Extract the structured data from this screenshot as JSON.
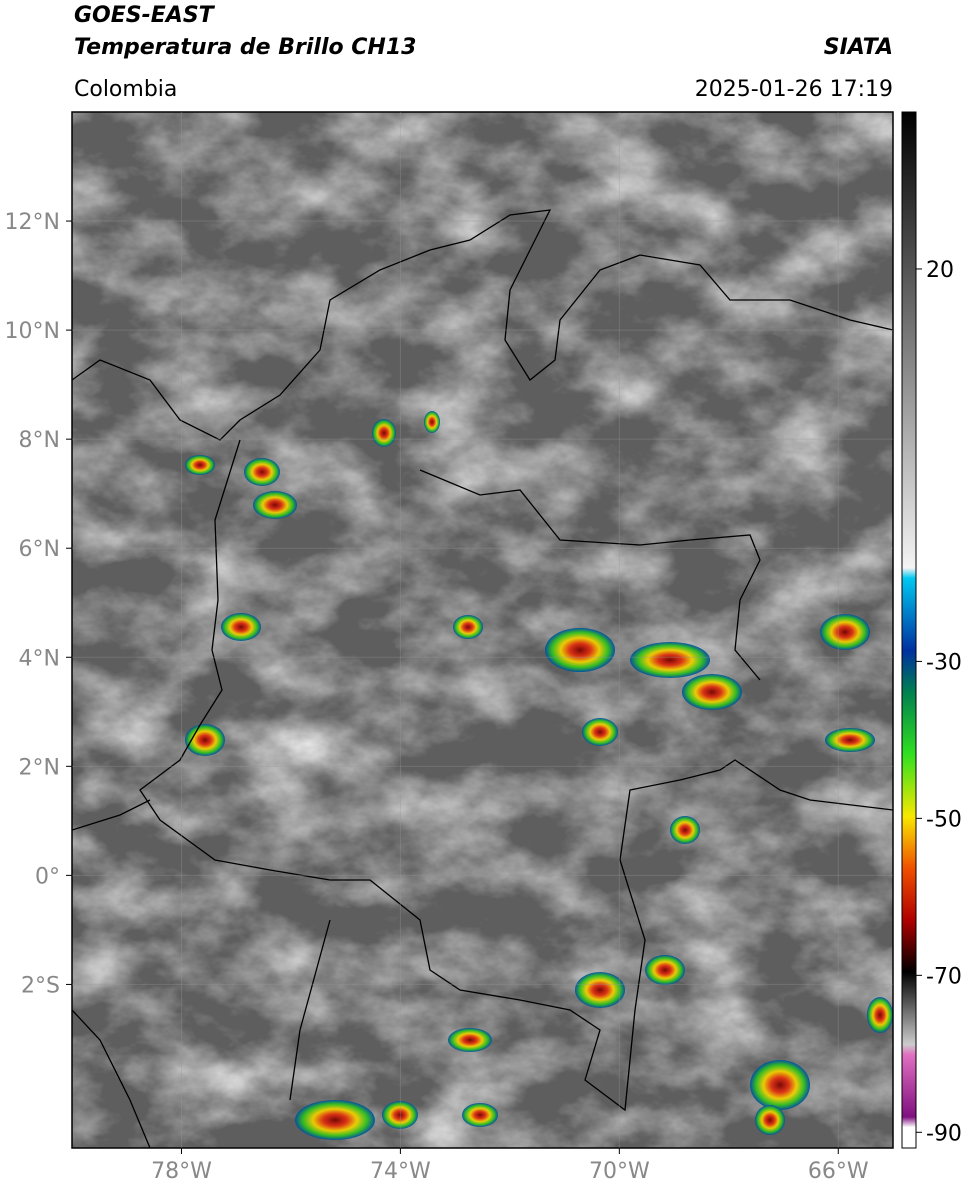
{
  "header": {
    "title": "GOES-EAST",
    "subtitle": "Temperatura de Brillo CH13",
    "source": "SIATA",
    "region": "Colombia",
    "datetime": "2025-01-26 17:19"
  },
  "map": {
    "xlim": [
      -80,
      -65
    ],
    "ylim": [
      -5,
      14
    ],
    "xticks": [
      {
        "value": -78,
        "label": "78°W"
      },
      {
        "value": -74,
        "label": "74°W"
      },
      {
        "value": -70,
        "label": "70°W"
      },
      {
        "value": -66,
        "label": "66°W"
      }
    ],
    "yticks": [
      {
        "value": 12,
        "label": "12°N"
      },
      {
        "value": 10,
        "label": "10°N"
      },
      {
        "value": 8,
        "label": "8°N"
      },
      {
        "value": 6,
        "label": "6°N"
      },
      {
        "value": 4,
        "label": "4°N"
      },
      {
        "value": 2,
        "label": "2°N"
      },
      {
        "value": 0,
        "label": "0°"
      },
      {
        "value": -2,
        "label": "2°S"
      }
    ],
    "grid": true
  },
  "colorbar": {
    "lim": [
      -92,
      40
    ],
    "ticks": [
      20,
      -30,
      -50,
      -70,
      -90
    ]
  }
}
